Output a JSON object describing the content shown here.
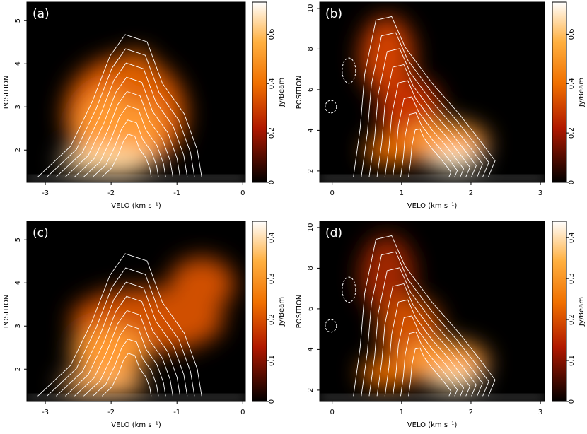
{
  "chart_data": [
    {
      "type": "heatmap",
      "label": "(a)",
      "xlabel": "VELO (km s⁻¹)",
      "ylabel": "POSITION",
      "xlim": [
        -3.28,
        0.04
      ],
      "xticks": [
        -3,
        -2,
        -1,
        0
      ],
      "ylim": [
        1.25,
        5.43
      ],
      "yticks": [
        2,
        3,
        4,
        5
      ],
      "colorbar": {
        "label": "Jy/Beam",
        "lim": [
          0,
          0.73
        ],
        "ticks": [
          0,
          0.2,
          0.4,
          0.6
        ]
      }
    },
    {
      "type": "heatmap",
      "label": "(b)",
      "xlabel": "VELO (km s⁻¹)",
      "ylabel": "POSITION",
      "xlim": [
        -0.18,
        3.06
      ],
      "xticks": [
        0,
        1,
        2,
        3
      ],
      "ylim": [
        1.44,
        10.31
      ],
      "yticks": [
        2,
        4,
        6,
        8,
        10
      ],
      "colorbar": {
        "label": "Jy/Beam",
        "lim": [
          0,
          0.73
        ],
        "ticks": [
          0,
          0.2,
          0.4,
          0.6
        ]
      }
    },
    {
      "type": "heatmap",
      "label": "(c)",
      "xlabel": "VELO (km s⁻¹)",
      "ylabel": "POSITION",
      "xlim": [
        -3.28,
        0.04
      ],
      "xticks": [
        -3,
        -2,
        -1,
        0
      ],
      "ylim": [
        1.25,
        5.43
      ],
      "yticks": [
        2,
        3,
        4,
        5
      ],
      "colorbar": {
        "label": "Jy/Beam",
        "lim": [
          0,
          0.44
        ],
        "ticks": [
          0,
          0.1,
          0.2,
          0.3,
          0.4
        ]
      }
    },
    {
      "type": "heatmap",
      "label": "(d)",
      "xlabel": "VELO (km s⁻¹)",
      "ylabel": "POSITION",
      "xlim": [
        -0.18,
        3.06
      ],
      "xticks": [
        0,
        1,
        2,
        3
      ],
      "ylim": [
        1.44,
        10.31
      ],
      "yticks": [
        2,
        4,
        6,
        8,
        10
      ],
      "colorbar": {
        "label": "Jy/Beam",
        "lim": [
          0,
          0.44
        ],
        "ticks": [
          0,
          0.1,
          0.2,
          0.3,
          0.4
        ]
      }
    }
  ]
}
